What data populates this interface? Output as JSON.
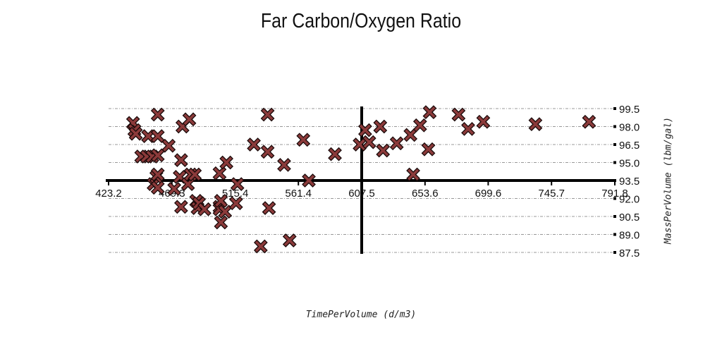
{
  "chart_data": {
    "type": "scatter",
    "title": "Far Carbon/Oxygen Ratio",
    "xlabel": "TimePerVolume (d/m3)",
    "ylabel": "MassPerVolume (lbm/gal)",
    "xlim": [
      423.2,
      791.8
    ],
    "ylim": [
      87.5,
      99.5
    ],
    "x_ticks": [
      "423.2",
      "469.3",
      "515.4",
      "561.4",
      "607.5",
      "653.6",
      "699.6",
      "745.7",
      "791.8"
    ],
    "y_ticks": [
      "99.5",
      "98.0",
      "96.5",
      "95.0",
      "93.5",
      "92.0",
      "90.5",
      "89.0",
      "87.5"
    ],
    "x_axis_crosses_y": 93.5,
    "y_axis_crosses_x": 607.5,
    "grid": "horizontal dash-dot",
    "marker": "x",
    "marker_color": "#8b3a3a",
    "series": [
      {
        "points": [
          [
            441,
            98.3
          ],
          [
            442,
            97.7
          ],
          [
            443,
            97.4
          ],
          [
            447,
            95.5
          ],
          [
            451,
            95.5
          ],
          [
            452,
            97.2
          ],
          [
            455,
            95.5
          ],
          [
            456,
            93.2
          ],
          [
            458,
            93.8
          ],
          [
            459,
            94.0
          ],
          [
            459,
            92.9
          ],
          [
            459,
            95.6
          ],
          [
            459,
            97.2
          ],
          [
            459,
            99.0
          ],
          [
            467,
            96.4
          ],
          [
            471,
            92.8
          ],
          [
            475,
            93.8
          ],
          [
            476,
            95.2
          ],
          [
            476,
            91.3
          ],
          [
            477,
            98.0
          ],
          [
            481,
            93.2
          ],
          [
            482,
            98.6
          ],
          [
            483,
            94.0
          ],
          [
            486,
            94.0
          ],
          [
            487,
            91.8
          ],
          [
            488,
            91.2
          ],
          [
            489,
            91.6
          ],
          [
            493,
            91.1
          ],
          [
            504,
            94.1
          ],
          [
            504,
            91.3
          ],
          [
            504,
            91.1
          ],
          [
            505,
            91.8
          ],
          [
            505,
            90.0
          ],
          [
            508,
            90.9
          ],
          [
            509,
            95.0
          ],
          [
            516,
            91.6
          ],
          [
            517,
            93.2
          ],
          [
            529,
            96.5
          ],
          [
            534,
            88.0
          ],
          [
            539,
            99.0
          ],
          [
            539,
            95.9
          ],
          [
            540,
            91.2
          ],
          [
            551,
            94.8
          ],
          [
            555,
            88.5
          ],
          [
            565,
            96.9
          ],
          [
            569,
            93.5
          ],
          [
            588,
            95.7
          ],
          [
            606,
            96.5
          ],
          [
            610,
            97.7
          ],
          [
            613,
            96.7
          ],
          [
            621,
            98.0
          ],
          [
            623,
            96.0
          ],
          [
            633,
            96.6
          ],
          [
            643,
            97.3
          ],
          [
            645,
            94.0
          ],
          [
            650,
            98.1
          ],
          [
            656,
            96.1
          ],
          [
            657,
            99.2
          ],
          [
            678,
            99.0
          ],
          [
            685,
            97.8
          ],
          [
            696,
            98.4
          ],
          [
            734,
            98.2
          ],
          [
            773,
            98.4
          ]
        ]
      }
    ]
  }
}
